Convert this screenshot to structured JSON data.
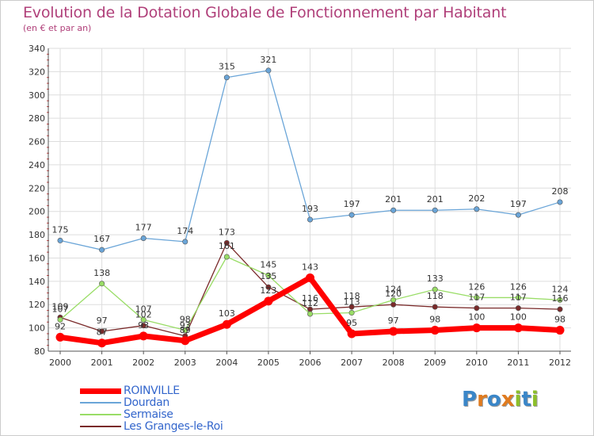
{
  "title": "Evolution de la Dotation Globale de Fonctionnement par Habitant",
  "subtitle": "(en € et par an)",
  "brand": {
    "text": "Proxiti",
    "letters": [
      "P",
      "r",
      "o",
      "x",
      "i",
      "t",
      "i"
    ],
    "letter_colors": [
      "#3a86c8",
      "#e07b1f",
      "#3a86c8",
      "#e07b1f",
      "#8dbf2a",
      "#3a86c8",
      "#8dbf2a"
    ]
  },
  "chart_data": {
    "type": "line",
    "categories": [
      "2000",
      "2001",
      "2002",
      "2003",
      "2004",
      "2005",
      "2006",
      "2007",
      "2008",
      "2009",
      "2010",
      "2011",
      "2012"
    ],
    "ylim": [
      80,
      340
    ],
    "yticks": [
      80,
      100,
      120,
      140,
      160,
      180,
      200,
      220,
      240,
      260,
      280,
      300,
      320,
      340
    ],
    "grid": true,
    "legend_position": "bottom-left",
    "series": [
      {
        "name": "ROINVILLE",
        "color": "#ff0000",
        "values": [
          92,
          87,
          93,
          89,
          103,
          123,
          143,
          95,
          97,
          98,
          100,
          100,
          98
        ],
        "labels": [
          "92",
          "87",
          "93",
          "89",
          "103",
          "123",
          "143",
          "95",
          "97",
          "98",
          "100",
          "100",
          "98"
        ]
      },
      {
        "name": "Dourdan",
        "color": "#6aa5d8",
        "values": [
          175,
          167,
          177,
          174,
          315,
          321,
          193,
          197,
          201,
          201,
          202,
          197,
          208
        ],
        "labels": [
          "175",
          "167",
          "177",
          "174",
          "315",
          "321",
          "193",
          "197",
          "201",
          "201",
          "202",
          "197",
          "208"
        ]
      },
      {
        "name": "Sermaise",
        "color": "#99dd66",
        "values": [
          107,
          138,
          107,
          98,
          161,
          145,
          112,
          113,
          124,
          133,
          126,
          126,
          124
        ],
        "labels": [
          "107",
          "138",
          "107",
          "98",
          "161",
          "145",
          "112",
          "113",
          "124",
          "133",
          "126",
          "126",
          "124"
        ]
      },
      {
        "name": "Les Granges-le-Roi",
        "color": "#7a2a2a",
        "values": [
          109,
          97,
          102,
          93,
          173,
          135,
          116,
          118,
          120,
          118,
          117,
          117,
          116
        ],
        "labels": [
          "109",
          "97",
          "102",
          "93",
          "173",
          "135",
          "116",
          "118",
          "120",
          "118",
          "117",
          "117",
          "116"
        ]
      }
    ]
  }
}
